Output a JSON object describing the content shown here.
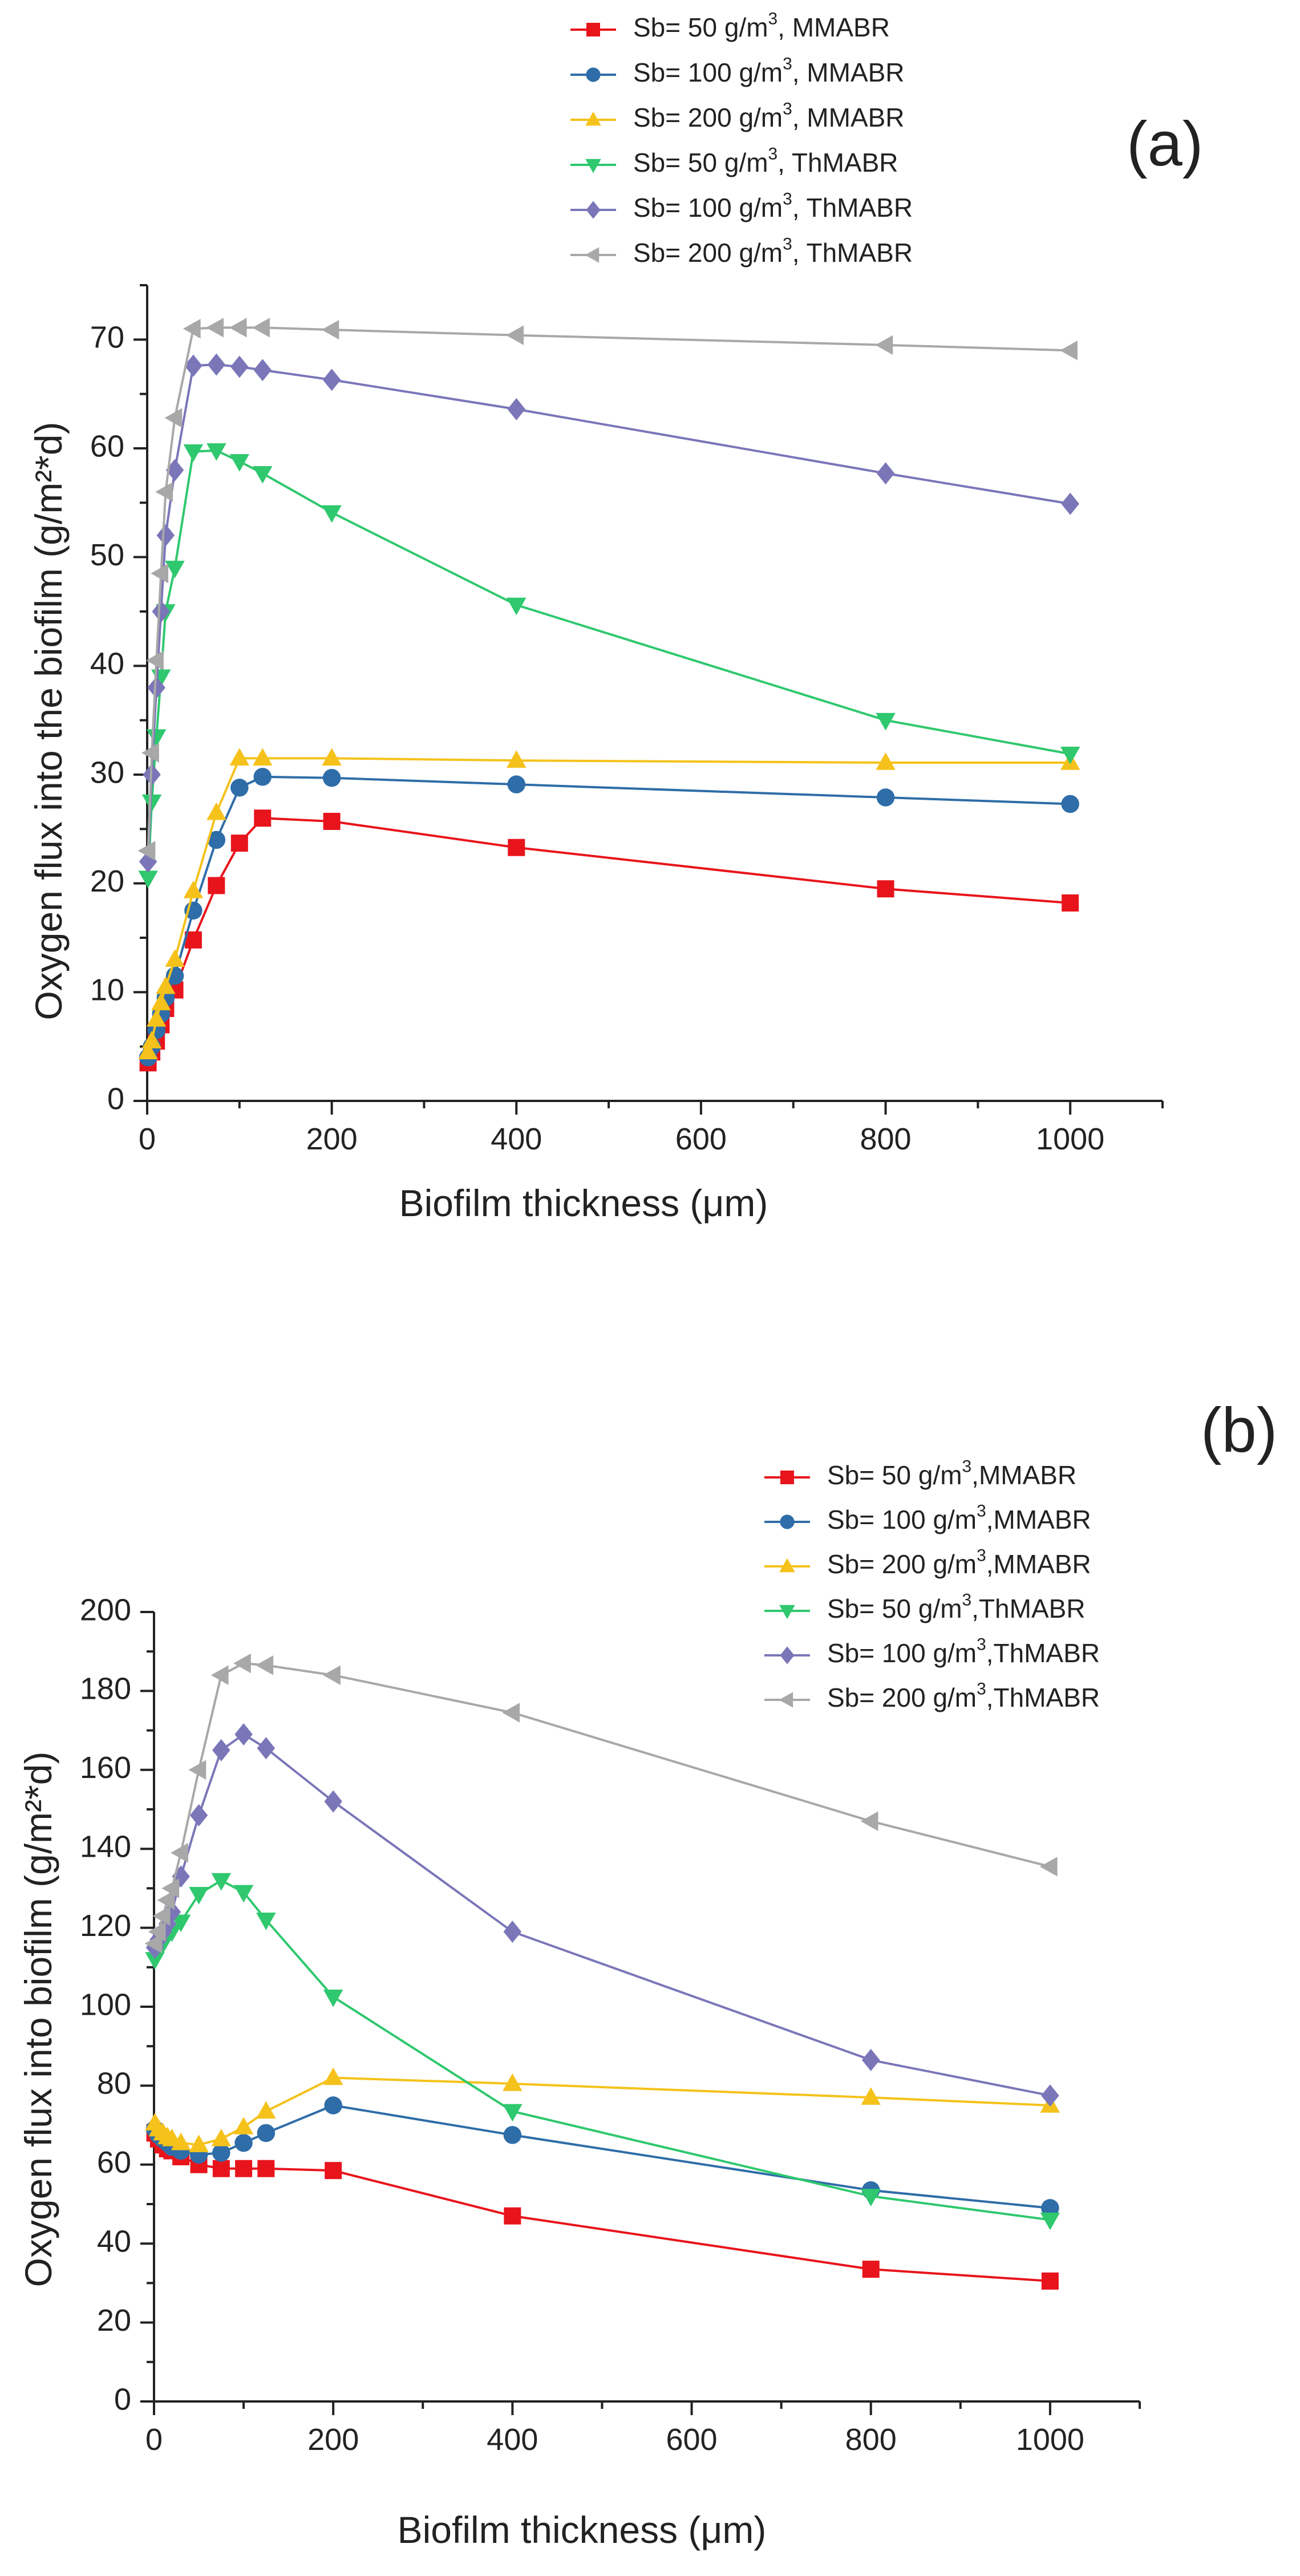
{
  "chart_data": [
    {
      "type": "line",
      "panel_label": "(a)",
      "xlabel": "Biofilm thickness (μm)",
      "ylabel": "Oxygen flux into the biofilm (g/m²*d)",
      "xlim": [
        0,
        1100
      ],
      "ylim": [
        0,
        75
      ],
      "xticks": [
        0,
        200,
        400,
        600,
        800,
        1000
      ],
      "yticks": [
        0,
        10,
        20,
        30,
        40,
        50,
        60,
        70
      ],
      "x_tick_labels": [
        "0",
        "200",
        "400",
        "600",
        "800",
        "1000"
      ],
      "y_tick_labels": [
        "0",
        "10",
        "20",
        "30",
        "40",
        "50",
        "60",
        "70"
      ],
      "legend_position": "top-right",
      "series": [
        {
          "name": "Sb= 50 g/m³, MMABR",
          "color": "#e8141c",
          "marker": "square",
          "x": [
            1,
            5,
            10,
            15,
            20,
            30,
            50,
            75,
            100,
            125,
            200,
            400,
            800,
            1000
          ],
          "y": [
            3.5,
            4.5,
            5.5,
            7,
            8.5,
            10.2,
            14.8,
            19.8,
            23.7,
            26,
            25.7,
            23.3,
            19.5,
            18.2
          ]
        },
        {
          "name": "Sb= 100 g/m³, MMABR",
          "color": "#2e6da8",
          "marker": "circle",
          "x": [
            1,
            5,
            10,
            15,
            20,
            30,
            50,
            75,
            100,
            125,
            200,
            400,
            800,
            1000
          ],
          "y": [
            4,
            5,
            6.5,
            8,
            9.5,
            11.5,
            17.5,
            24,
            28.8,
            29.8,
            29.7,
            29.1,
            27.9,
            27.3
          ]
        },
        {
          "name": "Sb= 200 g/m³, MMABR",
          "color": "#f5c21b",
          "marker": "triangle-up",
          "x": [
            1,
            5,
            10,
            15,
            20,
            30,
            50,
            75,
            100,
            125,
            200,
            400,
            800,
            1000
          ],
          "y": [
            4.5,
            5.5,
            7.5,
            9,
            10.5,
            13,
            19.3,
            26.5,
            31.5,
            31.5,
            31.5,
            31.3,
            31.1,
            31.1
          ]
        },
        {
          "name": "Sb= 50 g/m³, ThMABR",
          "color": "#2fc86e",
          "marker": "triangle-down",
          "x": [
            1,
            5,
            10,
            15,
            20,
            30,
            50,
            75,
            100,
            125,
            200,
            400,
            800,
            1000
          ],
          "y": [
            20.5,
            27.5,
            33.5,
            39,
            45,
            49,
            59.7,
            59.8,
            58.8,
            57.7,
            54.1,
            45.6,
            35,
            31.9
          ]
        },
        {
          "name": "Sb= 100 g/m³, ThMABR",
          "color": "#7b76b8",
          "marker": "diamond",
          "x": [
            1,
            5,
            10,
            15,
            20,
            30,
            50,
            75,
            100,
            125,
            200,
            400,
            800,
            1000
          ],
          "y": [
            22,
            30,
            38,
            45,
            52,
            58,
            67.6,
            67.7,
            67.5,
            67.2,
            66.3,
            63.6,
            57.7,
            54.9
          ]
        },
        {
          "name": "Sb= 200 g/m³, ThMABR",
          "color": "#a8a8a8",
          "marker": "triangle-left",
          "x": [
            1,
            5,
            10,
            15,
            20,
            30,
            50,
            75,
            100,
            125,
            200,
            400,
            800,
            1000
          ],
          "y": [
            23,
            32,
            40.5,
            48.5,
            56,
            62.8,
            71,
            71.1,
            71.1,
            71.1,
            70.9,
            70.4,
            69.5,
            69
          ]
        }
      ]
    },
    {
      "type": "line",
      "panel_label": "(b)",
      "xlabel": "Biofilm thickness (μm)",
      "ylabel": "Oxygen flux into biofilm (g/m²*d)",
      "xlim": [
        0,
        1100
      ],
      "ylim": [
        0,
        200
      ],
      "xticks": [
        0,
        200,
        400,
        600,
        800,
        1000
      ],
      "yticks": [
        0,
        20,
        40,
        60,
        80,
        100,
        120,
        140,
        160,
        180,
        200
      ],
      "x_tick_labels": [
        "0",
        "200",
        "400",
        "600",
        "800",
        "1000"
      ],
      "y_tick_labels": [
        "0",
        "20",
        "40",
        "60",
        "80",
        "100",
        "120",
        "140",
        "160",
        "180",
        "200"
      ],
      "legend_position": "top-right",
      "series": [
        {
          "name": "Sb= 50 g/m³,MMABR",
          "color": "#e8141c",
          "marker": "square",
          "x": [
            1,
            5,
            10,
            15,
            20,
            30,
            50,
            75,
            100,
            125,
            200,
            400,
            800,
            1000
          ],
          "y": [
            68,
            66.5,
            65,
            64,
            63.5,
            62,
            60,
            59,
            59,
            59,
            58.5,
            47,
            33.5,
            30.5
          ]
        },
        {
          "name": "Sb= 100 g/m³,MMABR",
          "color": "#2e6da8",
          "marker": "circle",
          "x": [
            1,
            5,
            10,
            15,
            20,
            30,
            50,
            75,
            100,
            125,
            200,
            400,
            800,
            1000
          ],
          "y": [
            69,
            67.5,
            66.5,
            65.5,
            64.5,
            63.5,
            62.5,
            63,
            65.5,
            68,
            75,
            67.5,
            53.5,
            49
          ]
        },
        {
          "name": "Sb= 200 g/m³,MMABR",
          "color": "#f5c21b",
          "marker": "triangle-up",
          "x": [
            1,
            5,
            10,
            15,
            20,
            30,
            50,
            75,
            100,
            125,
            200,
            400,
            800,
            1000
          ],
          "y": [
            70.5,
            69,
            68,
            67,
            66.5,
            65.5,
            65,
            66.5,
            69.5,
            73.5,
            82,
            80.5,
            77,
            75
          ]
        },
        {
          "name": "Sb= 50 g/m³,ThMABR",
          "color": "#2fc86e",
          "marker": "triangle-down",
          "x": [
            1,
            5,
            10,
            15,
            20,
            30,
            50,
            75,
            100,
            125,
            200,
            400,
            800,
            1000
          ],
          "y": [
            112,
            114,
            116,
            118,
            119,
            121.5,
            128.5,
            132,
            129,
            122,
            102.5,
            73.5,
            52,
            46
          ]
        },
        {
          "name": "Sb= 100 g/m³,ThMABR",
          "color": "#7b76b8",
          "marker": "diamond",
          "x": [
            1,
            5,
            10,
            15,
            20,
            30,
            50,
            75,
            100,
            125,
            200,
            400,
            800,
            1000
          ],
          "y": [
            115,
            117,
            119,
            121,
            124,
            133,
            148.5,
            165,
            169,
            165.5,
            152,
            119,
            86.5,
            77.5
          ]
        },
        {
          "name": "Sb= 200 g/m³,ThMABR",
          "color": "#a8a8a8",
          "marker": "triangle-left",
          "x": [
            1,
            5,
            10,
            15,
            20,
            30,
            50,
            75,
            100,
            125,
            200,
            400,
            800,
            1000
          ],
          "y": [
            116,
            119,
            123,
            127,
            130,
            139,
            160,
            184,
            187,
            186.5,
            184,
            174.5,
            147,
            135.5
          ]
        }
      ]
    }
  ]
}
